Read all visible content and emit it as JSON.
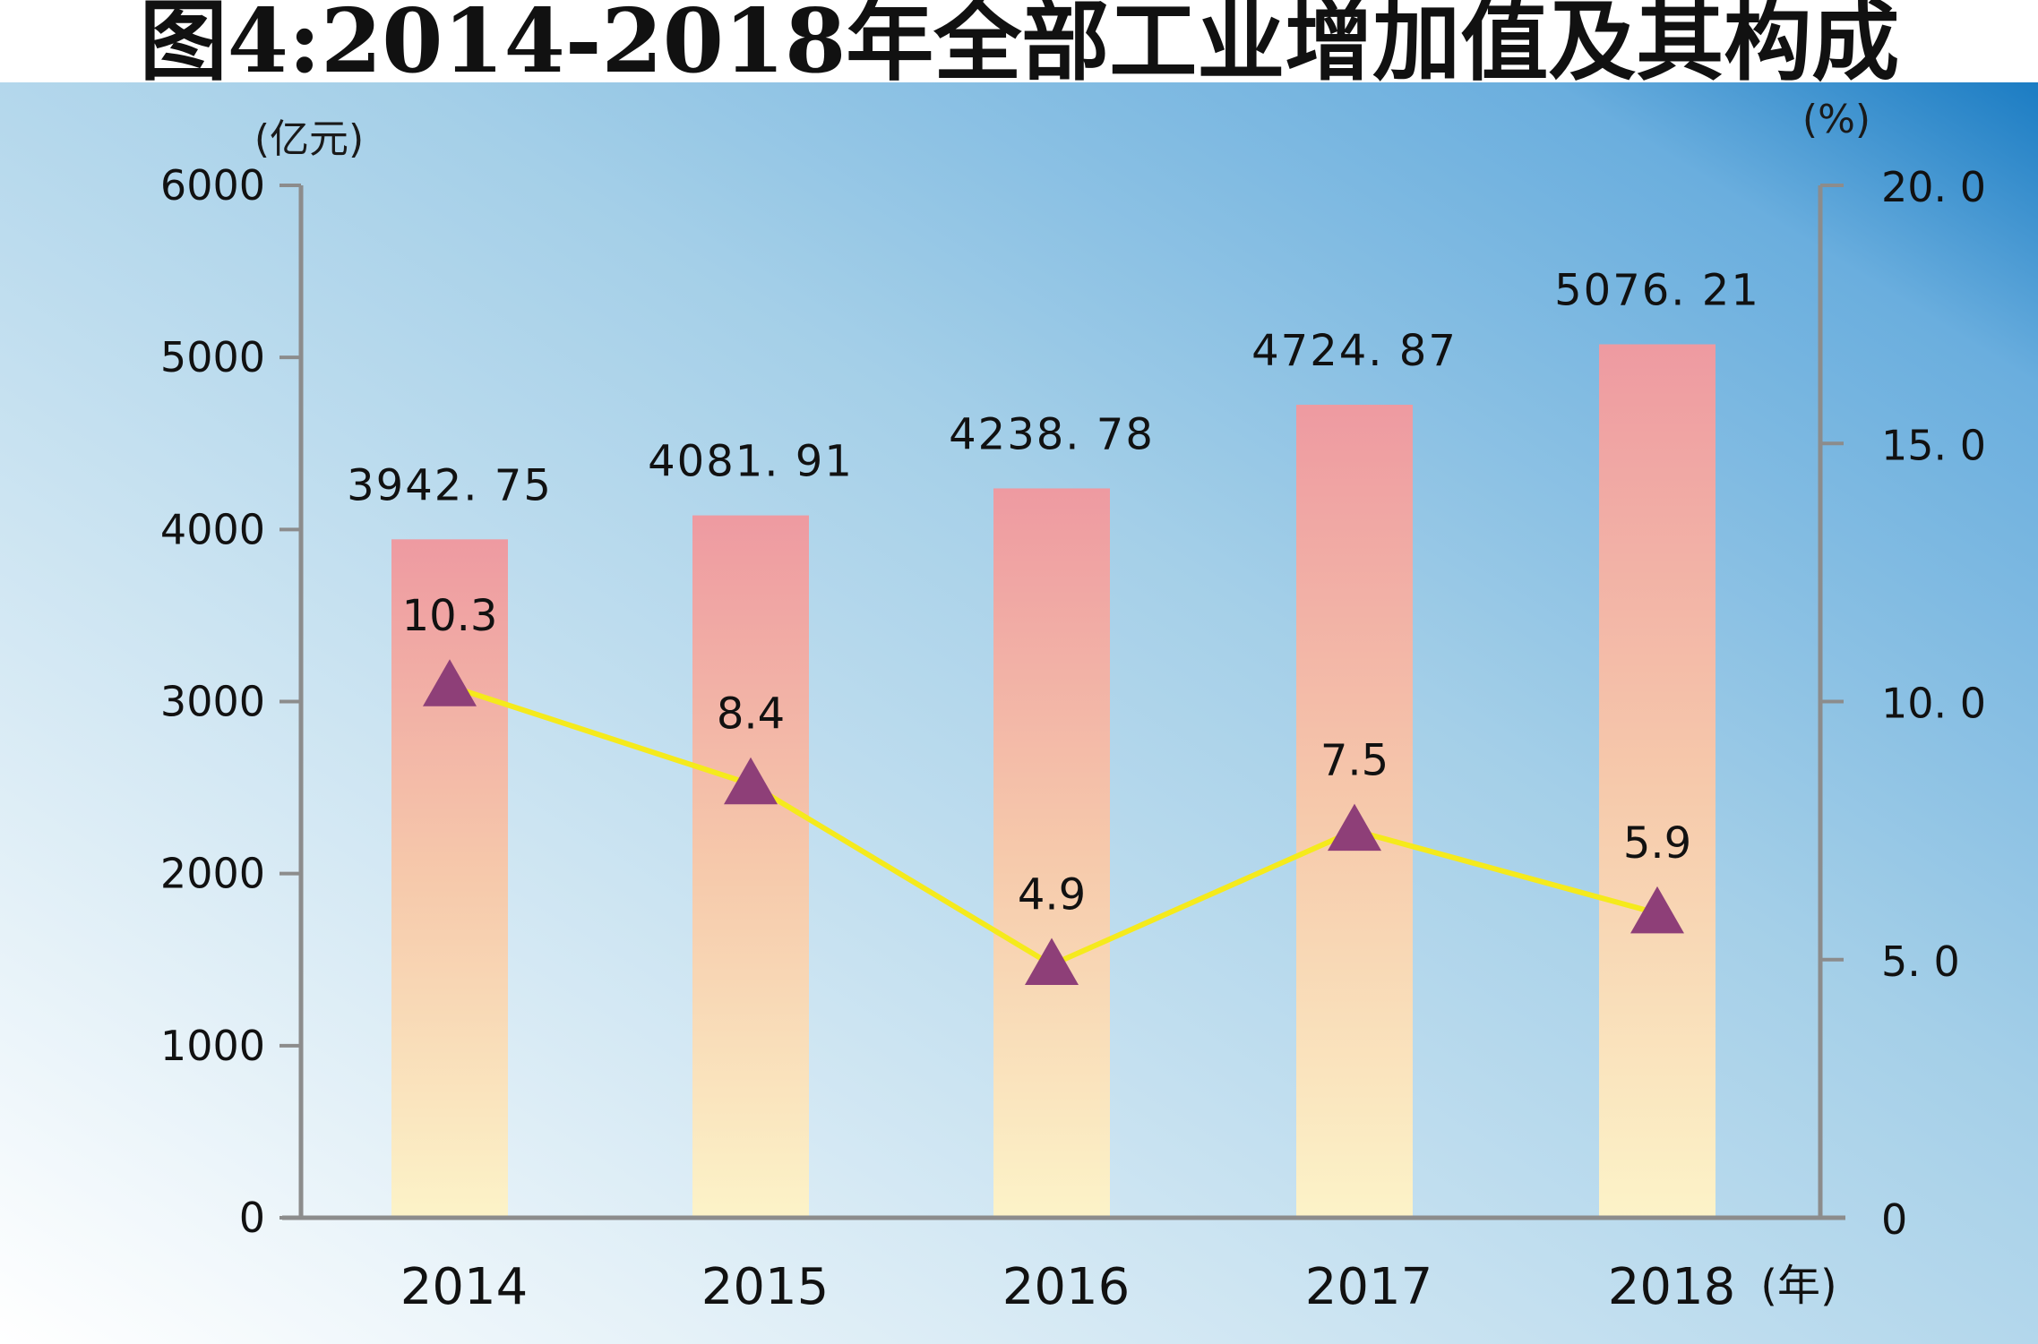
{
  "title": "图4:2014-2018年全部工业增加值及其构成",
  "colors": {
    "axis": "#8c8c8c",
    "line": "#f5ea1c",
    "marker": "#8e3f78",
    "bar_top": "#ee9aa1",
    "bar_mid": "#f6c9ab",
    "bar_bottom": "#fcf3c8"
  },
  "chart_data": {
    "type": "bar",
    "title": "图4:2014-2018年全部工业增加值及其构成",
    "xlabel": "(年)",
    "ylabel": "(亿元)",
    "y2label": "(%)",
    "categories": [
      "2014",
      "2015",
      "2016",
      "2017",
      "2018"
    ],
    "ylim": [
      0,
      6000
    ],
    "yticks": [
      "0",
      "1000",
      "2000",
      "3000",
      "4000",
      "5000",
      "6000"
    ],
    "y2lim": [
      0,
      20
    ],
    "y2ticks": [
      "0",
      "5. 0",
      "10. 0",
      "15. 0",
      "20. 0"
    ],
    "series": [
      {
        "type": "bar",
        "axis": "left",
        "values": [
          3942.75,
          4081.91,
          4238.78,
          4724.87,
          5076.21
        ],
        "labels": [
          "3942. 75",
          "4081. 91",
          "4238. 78",
          "4724. 87",
          "5076. 21"
        ]
      },
      {
        "type": "line",
        "axis": "right",
        "marker": "triangle",
        "values": [
          10.3,
          8.4,
          4.9,
          7.5,
          5.9
        ],
        "labels": [
          "10.3",
          "8.4",
          "4.9",
          "7.5",
          "5.9"
        ]
      }
    ],
    "grid": false,
    "legend": "none"
  }
}
